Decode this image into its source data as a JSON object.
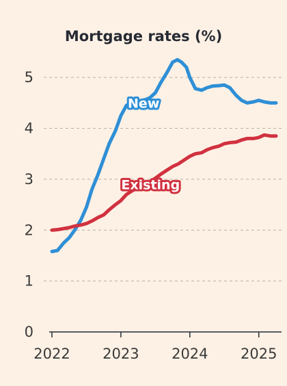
{
  "chart_data": {
    "type": "line",
    "title": "Mortgage rates (%)",
    "xlabel": "",
    "ylabel": "",
    "ylim": [
      0,
      5.5
    ],
    "xlim": [
      2022.0,
      2025.3
    ],
    "yticks": [
      0,
      1,
      2,
      3,
      4,
      5
    ],
    "xticks": [
      "2022",
      "2023",
      "2024",
      "2025"
    ],
    "grid": true,
    "series": [
      {
        "name": "New",
        "color": "#2e8fd6",
        "x": [
          2022.0,
          2022.08,
          2022.17,
          2022.25,
          2022.33,
          2022.42,
          2022.5,
          2022.58,
          2022.67,
          2022.75,
          2022.83,
          2022.92,
          2023.0,
          2023.08,
          2023.17,
          2023.25,
          2023.33,
          2023.42,
          2023.5,
          2023.58,
          2023.67,
          2023.75,
          2023.82,
          2023.88,
          2023.95,
          2024.0,
          2024.08,
          2024.17,
          2024.25,
          2024.33,
          2024.42,
          2024.5,
          2024.58,
          2024.67,
          2024.75,
          2024.83,
          2024.92,
          2025.0,
          2025.08,
          2025.17,
          2025.25
        ],
        "values": [
          1.58,
          1.6,
          1.75,
          1.85,
          2.0,
          2.2,
          2.45,
          2.8,
          3.1,
          3.4,
          3.7,
          3.95,
          4.25,
          4.45,
          4.52,
          4.5,
          4.55,
          4.6,
          4.7,
          4.9,
          5.1,
          5.3,
          5.35,
          5.3,
          5.2,
          5.0,
          4.78,
          4.75,
          4.8,
          4.83,
          4.84,
          4.85,
          4.8,
          4.65,
          4.55,
          4.5,
          4.52,
          4.55,
          4.52,
          4.5,
          4.5
        ]
      },
      {
        "name": "Existing",
        "color": "#d1313f",
        "x": [
          2022.0,
          2022.08,
          2022.17,
          2022.25,
          2022.33,
          2022.42,
          2022.5,
          2022.58,
          2022.67,
          2022.75,
          2022.83,
          2022.92,
          2023.0,
          2023.08,
          2023.17,
          2023.25,
          2023.33,
          2023.42,
          2023.5,
          2023.58,
          2023.67,
          2023.75,
          2023.83,
          2023.92,
          2024.0,
          2024.08,
          2024.17,
          2024.25,
          2024.33,
          2024.42,
          2024.5,
          2024.58,
          2024.67,
          2024.75,
          2024.83,
          2024.92,
          2025.0,
          2025.08,
          2025.17,
          2025.25
        ],
        "values": [
          2.0,
          2.01,
          2.03,
          2.05,
          2.08,
          2.1,
          2.13,
          2.18,
          2.25,
          2.3,
          2.4,
          2.5,
          2.58,
          2.7,
          2.78,
          2.83,
          2.88,
          2.95,
          3.02,
          3.1,
          3.18,
          3.25,
          3.3,
          3.38,
          3.45,
          3.5,
          3.52,
          3.58,
          3.62,
          3.65,
          3.7,
          3.72,
          3.73,
          3.77,
          3.8,
          3.8,
          3.82,
          3.87,
          3.85,
          3.85
        ]
      }
    ]
  }
}
